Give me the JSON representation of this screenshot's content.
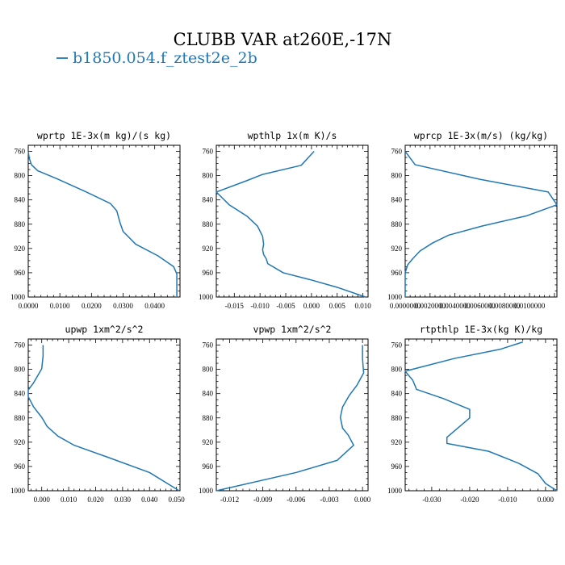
{
  "figure": {
    "title": "CLUBB VAR at260E,-17N",
    "legend": {
      "label": "b1850.054.f_ztest2e_2b",
      "color": "#1f77b4"
    }
  },
  "chart_data": [
    {
      "type": "line",
      "title": "wprtp  1E-3x(m kg)/(s kg)",
      "xlim": [
        0.0,
        0.048
      ],
      "ylim": [
        1000,
        750
      ],
      "xticks": [
        0.0,
        0.01,
        0.02,
        0.03,
        0.04
      ],
      "xtick_labels": [
        "0.0000",
        "0.0100",
        "0.0200",
        "0.0300",
        "0.0400"
      ],
      "yticks": [
        760,
        800,
        840,
        880,
        920,
        960,
        1000
      ],
      "series": [
        {
          "x": [
            0.0,
            0.0003,
            0.001,
            0.003,
            0.009,
            0.018,
            0.026,
            0.028,
            0.029,
            0.03,
            0.034,
            0.041,
            0.046,
            0.047,
            0.047,
            0.047
          ],
          "y": [
            760,
            771,
            782,
            792,
            805,
            826,
            846,
            858,
            877,
            892,
            913,
            932,
            950,
            962,
            975,
            1000
          ]
        }
      ],
      "grid": false
    },
    {
      "type": "line",
      "title": "wpthlp  1x(m K)/s",
      "xlim": [
        -0.0185,
        0.011
      ],
      "ylim": [
        1000,
        750
      ],
      "xticks": [
        -0.015,
        -0.01,
        -0.005,
        0.0,
        0.005,
        0.01
      ],
      "xtick_labels": [
        "-0.015",
        "-0.010",
        "-0.005",
        "0.000",
        "0.005",
        "0.010"
      ],
      "yticks": [
        760,
        800,
        840,
        880,
        920,
        960,
        1000
      ],
      "series": [
        {
          "x": [
            0.0005,
            -0.002,
            -0.0095,
            -0.0125,
            -0.0185,
            -0.016,
            -0.0125,
            -0.0105,
            -0.0095,
            -0.0093,
            -0.0095,
            -0.0093,
            -0.0088,
            -0.0085,
            -0.0055,
            0.0,
            0.005,
            0.0105
          ],
          "y": [
            760,
            783,
            798,
            808,
            827,
            848,
            867,
            883,
            900,
            913,
            922,
            930,
            937,
            945,
            960,
            972,
            984,
            1000
          ]
        }
      ],
      "grid": false
    },
    {
      "type": "line",
      "title": "wprcp  1E-3x(m/s) (kg/kg)",
      "xlim": [
        0.0,
        0.0122
      ],
      "ylim": [
        1000,
        750
      ],
      "xticks": [
        0.0,
        0.002,
        0.004,
        0.006,
        0.008,
        0.01
      ],
      "xtick_labels": [
        "0.0000000",
        "0.0020000",
        "0.0040000",
        "0.0060000",
        "0.0080000",
        "0.0100000"
      ],
      "yticks": [
        760,
        800,
        840,
        880,
        920,
        960,
        1000
      ],
      "series": [
        {
          "x": [
            0.0,
            0.0008,
            0.006,
            0.0115,
            0.0122,
            0.0098,
            0.0062,
            0.0035,
            0.0022,
            0.0012,
            0.0006,
            0.0002,
            0.0,
            0.0
          ],
          "y": [
            760,
            782,
            806,
            827,
            848,
            866,
            883,
            898,
            911,
            924,
            937,
            947,
            960,
            1000
          ]
        }
      ],
      "grid": false
    },
    {
      "type": "line",
      "title": "upwp  1xm^2/s^2",
      "xlim": [
        -0.005,
        0.0513
      ],
      "ylim": [
        1000,
        750
      ],
      "xticks": [
        0.0,
        0.01,
        0.02,
        0.03,
        0.04,
        0.05
      ],
      "xtick_labels": [
        "0.000",
        "0.010",
        "0.020",
        "0.030",
        "0.040",
        "0.050"
      ],
      "yticks": [
        760,
        800,
        840,
        880,
        920,
        960,
        1000
      ],
      "series": [
        {
          "x": [
            0.0005,
            0.0005,
            0.0,
            -0.003,
            -0.005,
            -0.005,
            -0.003,
            0.0,
            0.002,
            0.006,
            0.012,
            0.024,
            0.04,
            0.051
          ],
          "y": [
            760,
            778,
            799,
            822,
            834,
            845,
            862,
            879,
            894,
            910,
            925,
            944,
            970,
            1000
          ]
        }
      ],
      "grid": false
    },
    {
      "type": "line",
      "title": "vpwp  1xm^2/s^2",
      "xlim": [
        -0.0132,
        0.0005
      ],
      "ylim": [
        1000,
        750
      ],
      "xticks": [
        -0.012,
        -0.009,
        -0.006,
        -0.003,
        0.0
      ],
      "xtick_labels": [
        "-0.012",
        "-0.009",
        "-0.006",
        "-0.003",
        "0.000"
      ],
      "yticks": [
        760,
        800,
        840,
        880,
        920,
        960,
        1000
      ],
      "series": [
        {
          "x": [
            0.0,
            0.0,
            0.0001,
            -0.0005,
            -0.0012,
            -0.0018,
            -0.002,
            -0.0018,
            -0.0013,
            -0.0008,
            -0.0023,
            -0.006,
            -0.0132
          ],
          "y": [
            760,
            782,
            806,
            826,
            843,
            862,
            879,
            897,
            908,
            925,
            950,
            970,
            1000
          ]
        }
      ],
      "grid": false
    },
    {
      "type": "line",
      "title": "rtpthlp  1E-3x(kg K)/kg",
      "xlim": [
        -0.037,
        0.003
      ],
      "ylim": [
        1000,
        750
      ],
      "xticks": [
        -0.03,
        -0.02,
        -0.01,
        0.0
      ],
      "xtick_labels": [
        "-0.030",
        "-0.020",
        "-0.010",
        "0.000"
      ],
      "yticks": [
        760,
        800,
        840,
        880,
        920,
        960,
        1000
      ],
      "series": [
        {
          "x": [
            -0.006,
            -0.012,
            -0.024,
            -0.037,
            -0.035,
            -0.034,
            -0.027,
            -0.02,
            -0.02,
            -0.023,
            -0.026,
            -0.026,
            -0.015,
            -0.007,
            -0.002,
            0.0,
            0.003
          ],
          "y": [
            755,
            767,
            782,
            803,
            818,
            833,
            848,
            866,
            880,
            896,
            912,
            922,
            935,
            955,
            972,
            988,
            1000
          ]
        }
      ],
      "grid": false
    }
  ]
}
